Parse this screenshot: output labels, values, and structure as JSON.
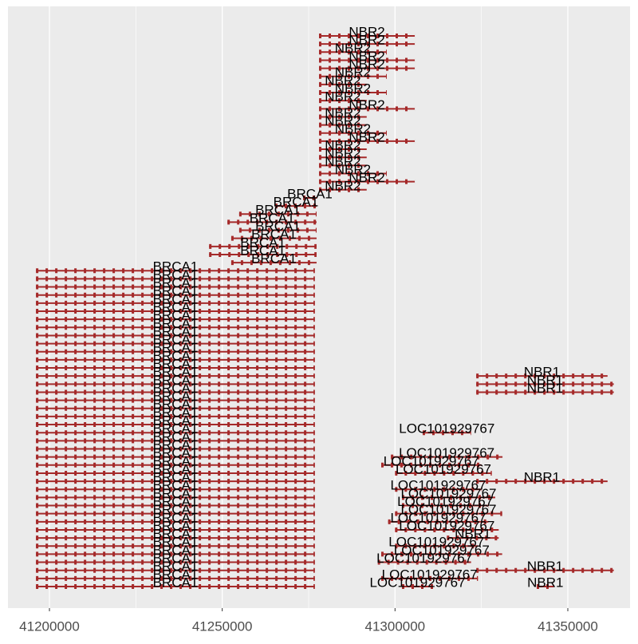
{
  "chart_data": {
    "type": "gene-track",
    "color": "#a52a2a",
    "xlim": [
      41188000,
      41368000
    ],
    "xticks": [
      41200000,
      41250000,
      41300000,
      41350000
    ],
    "grid": true,
    "tracks": [
      [
        {
          "name": "NBR2",
          "start": 41278000,
          "end": 41305700
        }
      ],
      [
        {
          "name": "NBR2",
          "start": 41278000,
          "end": 41305700
        }
      ],
      [
        {
          "name": "NBR2",
          "start": 41278000,
          "end": 41297600
        }
      ],
      [
        {
          "name": "NBR2",
          "start": 41278000,
          "end": 41305700
        }
      ],
      [
        {
          "name": "NBR2",
          "start": 41278000,
          "end": 41305700
        }
      ],
      [
        {
          "name": "NBR2",
          "start": 41278000,
          "end": 41297600
        }
      ],
      [
        {
          "name": "NBR2",
          "start": 41278000,
          "end": 41291800
        }
      ],
      [
        {
          "name": "NBR2",
          "start": 41278000,
          "end": 41297600
        }
      ],
      [
        {
          "name": "NBR2",
          "start": 41278000,
          "end": 41291800
        }
      ],
      [
        {
          "name": "NBR2",
          "start": 41278000,
          "end": 41305700
        }
      ],
      [
        {
          "name": "NBR2",
          "start": 41278000,
          "end": 41291800
        }
      ],
      [
        {
          "name": "NBR2",
          "start": 41278000,
          "end": 41291800
        }
      ],
      [
        {
          "name": "NBR2",
          "start": 41278000,
          "end": 41297600
        }
      ],
      [
        {
          "name": "NBR2",
          "start": 41278000,
          "end": 41305700
        }
      ],
      [
        {
          "name": "NBR2",
          "start": 41278000,
          "end": 41291800
        }
      ],
      [
        {
          "name": "NBR2",
          "start": 41278000,
          "end": 41291800
        }
      ],
      [
        {
          "name": "NBR2",
          "start": 41278000,
          "end": 41291800
        }
      ],
      [
        {
          "name": "NBR2",
          "start": 41278000,
          "end": 41297600
        }
      ],
      [
        {
          "name": "NBR2",
          "start": 41278000,
          "end": 41305700
        }
      ],
      [
        {
          "name": "NBR2",
          "start": 41278000,
          "end": 41291800
        }
      ],
      [
        {
          "name": "BRCA1",
          "start": 41273400,
          "end": 41277300
        }
      ],
      [
        {
          "name": "BRCA1",
          "start": 41265300,
          "end": 41277300
        }
      ],
      [
        {
          "name": "BRCA1",
          "start": 41254900,
          "end": 41277300
        }
      ],
      [
        {
          "name": "BRCA1",
          "start": 41251500,
          "end": 41277300
        }
      ],
      [
        {
          "name": "BRCA1",
          "start": 41254900,
          "end": 41277300
        }
      ],
      [
        {
          "name": "BRCA1",
          "start": 41252600,
          "end": 41277300
        }
      ],
      [
        {
          "name": "BRCA1",
          "start": 41246200,
          "end": 41277300
        }
      ],
      [
        {
          "name": "BRCA1",
          "start": 41246200,
          "end": 41277300
        }
      ],
      [
        {
          "name": "BRCA1",
          "start": 41252600,
          "end": 41277300
        }
      ],
      [
        {
          "name": "BRCA1",
          "start": 41196100,
          "end": 41276800
        }
      ],
      [
        {
          "name": "BRCA1",
          "start": 41196100,
          "end": 41276800
        }
      ],
      [
        {
          "name": "BRCA1",
          "start": 41196100,
          "end": 41276800
        }
      ],
      [
        {
          "name": "BRCA1",
          "start": 41196100,
          "end": 41276800
        }
      ],
      [
        {
          "name": "BRCA1",
          "start": 41196100,
          "end": 41276800
        }
      ],
      [
        {
          "name": "BRCA1",
          "start": 41196100,
          "end": 41276800
        }
      ],
      [
        {
          "name": "BRCA1",
          "start": 41196100,
          "end": 41276800
        }
      ],
      [
        {
          "name": "BRCA1",
          "start": 41196100,
          "end": 41276800
        }
      ],
      [
        {
          "name": "BRCA1",
          "start": 41196100,
          "end": 41276800
        }
      ],
      [
        {
          "name": "BRCA1",
          "start": 41196100,
          "end": 41276800
        }
      ],
      [
        {
          "name": "BRCA1",
          "start": 41196100,
          "end": 41276800
        }
      ],
      [
        {
          "name": "BRCA1",
          "start": 41196100,
          "end": 41276800
        }
      ],
      [
        {
          "name": "BRCA1",
          "start": 41196100,
          "end": 41276800
        }
      ],
      [
        {
          "name": "BRCA1",
          "start": 41196100,
          "end": 41276800
        },
        {
          "name": "NBR1",
          "start": 41323500,
          "end": 41361500
        }
      ],
      [
        {
          "name": "BRCA1",
          "start": 41196100,
          "end": 41276800
        },
        {
          "name": "NBR1",
          "start": 41323500,
          "end": 41363300
        }
      ],
      [
        {
          "name": "BRCA1",
          "start": 41196100,
          "end": 41276800
        },
        {
          "name": "NBR1",
          "start": 41323500,
          "end": 41363300
        }
      ],
      [
        {
          "name": "BRCA1",
          "start": 41196100,
          "end": 41276800
        }
      ],
      [
        {
          "name": "BRCA1",
          "start": 41196100,
          "end": 41276800
        }
      ],
      [
        {
          "name": "BRCA1",
          "start": 41196100,
          "end": 41276800
        }
      ],
      [
        {
          "name": "BRCA1",
          "start": 41196100,
          "end": 41276800
        }
      ],
      [
        {
          "name": "BRCA1",
          "start": 41196100,
          "end": 41276800
        },
        {
          "name": "LOC101929767",
          "start": 41308000,
          "end": 41322000
        }
      ],
      [
        {
          "name": "BRCA1",
          "start": 41196100,
          "end": 41276800
        }
      ],
      [
        {
          "name": "BRCA1",
          "start": 41196100,
          "end": 41276800
        }
      ],
      [
        {
          "name": "BRCA1",
          "start": 41196100,
          "end": 41276800
        },
        {
          "name": "LOC101929767",
          "start": 41298800,
          "end": 41331100
        }
      ],
      [
        {
          "name": "BRCA1",
          "start": 41196100,
          "end": 41276800
        },
        {
          "name": "LOC101929767",
          "start": 41296000,
          "end": 41325000
        }
      ],
      [
        {
          "name": "BRCA1",
          "start": 41196100,
          "end": 41276800
        },
        {
          "name": "LOC101929767",
          "start": 41300000,
          "end": 41328000
        }
      ],
      [
        {
          "name": "BRCA1",
          "start": 41196100,
          "end": 41276800
        },
        {
          "name": "NBR1",
          "start": 41323500,
          "end": 41361500
        }
      ],
      [
        {
          "name": "BRCA1",
          "start": 41196100,
          "end": 41276800
        },
        {
          "name": "LOC101929767",
          "start": 41300000,
          "end": 41325000
        }
      ],
      [
        {
          "name": "BRCA1",
          "start": 41196100,
          "end": 41276800
        },
        {
          "name": "LOC101929767",
          "start": 41302000,
          "end": 41329000
        }
      ],
      [
        {
          "name": "BRCA1",
          "start": 41196100,
          "end": 41276800
        },
        {
          "name": "LOC101929767",
          "start": 41302000,
          "end": 41327000
        }
      ],
      [
        {
          "name": "BRCA1",
          "start": 41196100,
          "end": 41276800
        },
        {
          "name": "LOC101929767",
          "start": 41300000,
          "end": 41331000
        }
      ],
      [
        {
          "name": "BRCA1",
          "start": 41196100,
          "end": 41276800
        },
        {
          "name": "LOC101929767",
          "start": 41298000,
          "end": 41327000
        }
      ],
      [
        {
          "name": "BRCA1",
          "start": 41196100,
          "end": 41276800
        },
        {
          "name": "LOC101929767",
          "start": 41300000,
          "end": 41330000
        }
      ],
      [
        {
          "name": "BRCA1",
          "start": 41196100,
          "end": 41276800
        },
        {
          "name": "NBR1",
          "start": 41315000,
          "end": 41330000
        }
      ],
      [
        {
          "name": "BRCA1",
          "start": 41196100,
          "end": 41276800
        },
        {
          "name": "LOC101929767",
          "start": 41300000,
          "end": 41324000
        }
      ],
      [
        {
          "name": "BRCA1",
          "start": 41196100,
          "end": 41276800
        },
        {
          "name": "LOC101929767",
          "start": 41296000,
          "end": 41331000
        }
      ],
      [
        {
          "name": "BRCA1",
          "start": 41196100,
          "end": 41276800
        },
        {
          "name": "LOC101929767",
          "start": 41295000,
          "end": 41322000
        }
      ],
      [
        {
          "name": "BRCA1",
          "start": 41196100,
          "end": 41276800
        },
        {
          "name": "NBR1",
          "start": 41323500,
          "end": 41363300
        }
      ],
      [
        {
          "name": "BRCA1",
          "start": 41196100,
          "end": 41276800
        },
        {
          "name": "LOC101929767",
          "start": 41296000,
          "end": 41324000
        }
      ],
      [
        {
          "name": "BRCA1",
          "start": 41196100,
          "end": 41276800
        },
        {
          "name": "LOC101929767",
          "start": 41302000,
          "end": 41311000
        },
        {
          "name": "NBR1",
          "start": 41341000,
          "end": 41346000
        }
      ]
    ]
  }
}
